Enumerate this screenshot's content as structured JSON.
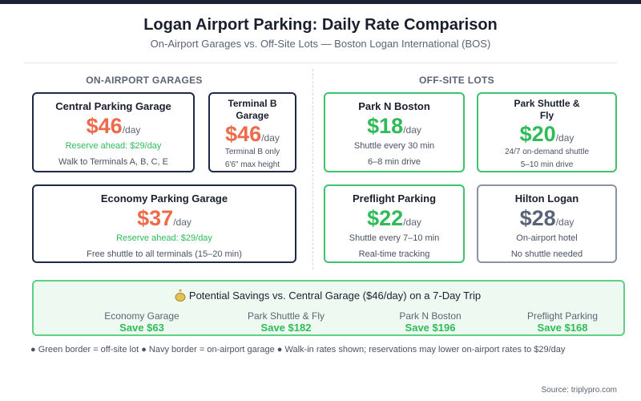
{
  "header": {
    "title": "Logan Airport Parking: Daily Rate Comparison",
    "subtitle": "On-Airport Garages vs. Off-Site Lots — Boston Logan International (BOS)"
  },
  "sections": [
    {
      "title": "ON-AIRPORT GARAGES",
      "cards": [
        {
          "name": "Central Parking Garage",
          "price": "$46",
          "unit": "/day",
          "lines": [
            "Reserve ahead: $29/day",
            "Walk to Terminals A, B, C, E"
          ]
        },
        {
          "name": "Terminal B Garage",
          "price": "$46",
          "unit": "/day",
          "lines": [
            "Terminal B only",
            "6'6\" max height"
          ]
        },
        {
          "name": "Economy Parking Garage",
          "price": "$37",
          "unit": "/day",
          "lines": [
            "Reserve ahead: $29/day",
            "Free shuttle to all terminals (15–20 min)"
          ]
        }
      ]
    },
    {
      "title": "OFF-SITE LOTS",
      "cards": [
        {
          "name": "Park N Boston",
          "price": "$18",
          "unit": "/day",
          "lines": [
            "Shuttle every 30 min",
            "6–8 min drive"
          ]
        },
        {
          "name": "Park Shuttle & Fly",
          "price": "$20",
          "unit": "/day",
          "lines": [
            "24/7 on-demand shuttle",
            "5–10 min drive"
          ]
        },
        {
          "name": "Preflight Parking",
          "price": "$22",
          "unit": "/day",
          "lines": [
            "Shuttle every 7–10 min",
            "Real-time tracking"
          ]
        },
        {
          "name": "Hilton Logan",
          "price": "$28",
          "unit": "/day",
          "lines": [
            "On-airport hotel",
            "No shuttle needed"
          ]
        }
      ]
    }
  ],
  "savings": {
    "title": "Potential Savings vs. Central Garage ($46/day) on a 7-Day Trip",
    "items": [
      {
        "label": "Economy Garage",
        "value": "Save $63"
      },
      {
        "label": "Park Shuttle & Fly",
        "value": "Save $182"
      },
      {
        "label": "Park N Boston",
        "value": "Save $196"
      },
      {
        "label": "Preflight Parking",
        "value": "Save $168"
      }
    ]
  },
  "footnote": "● Green border = off-site lot ● Navy border = on-airport garage ● Walk-in rates shown; reservations may lower on-airport rates to $29/day",
  "source": "Source: triplypro.com"
}
